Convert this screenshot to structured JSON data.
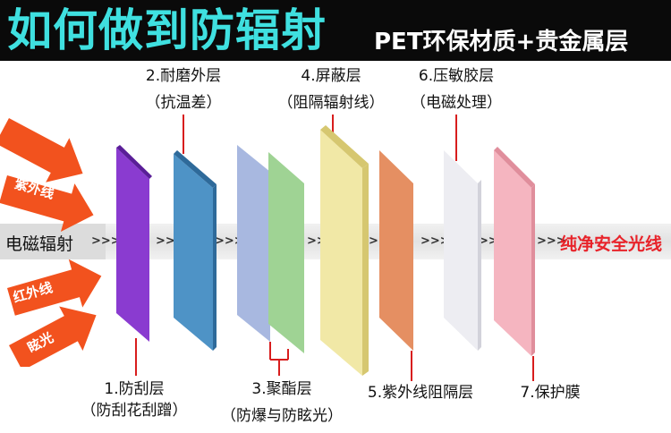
{
  "header": {
    "title": "如何做到防辐射",
    "subtitle": "PET环保材质+贵金属层"
  },
  "rays": [
    {
      "label": "杂色光"
    },
    {
      "label": "紫外线"
    },
    {
      "label": "红外线"
    },
    {
      "label": "眩光"
    }
  ],
  "flow": {
    "input_label": "电磁辐射",
    "chevron": ">>>",
    "output_label": "纯净安全光线"
  },
  "layers": [
    {
      "name": "1.防刮层",
      "note": "（防刮花刮蹭）",
      "color": "#8a3bd0"
    },
    {
      "name": "2.耐磨外层",
      "note": "（抗温差）",
      "color": "#4e93c6"
    },
    {
      "name": "3.聚酯层",
      "note": "（防爆与防眩光）",
      "color": "#a8b8e0"
    },
    {
      "name": "4.屏蔽层",
      "note": "（阻隔辐射线）",
      "color": "#f1e8a6"
    },
    {
      "name": "5.紫外线阻隔层",
      "note": "",
      "color": "#e58f62"
    },
    {
      "name": "6.压敏胶层",
      "note": "（电磁处理）",
      "color": "#efeff3"
    },
    {
      "name": "7.保护膜",
      "note": "",
      "color": "#f5b5c0"
    }
  ],
  "colors": {
    "header_bg": "#0a0a0a",
    "title": "#3fe0e0",
    "arrow": "#f2521e",
    "pointer": "#d81d1d",
    "safe_text": "#e8232a"
  }
}
